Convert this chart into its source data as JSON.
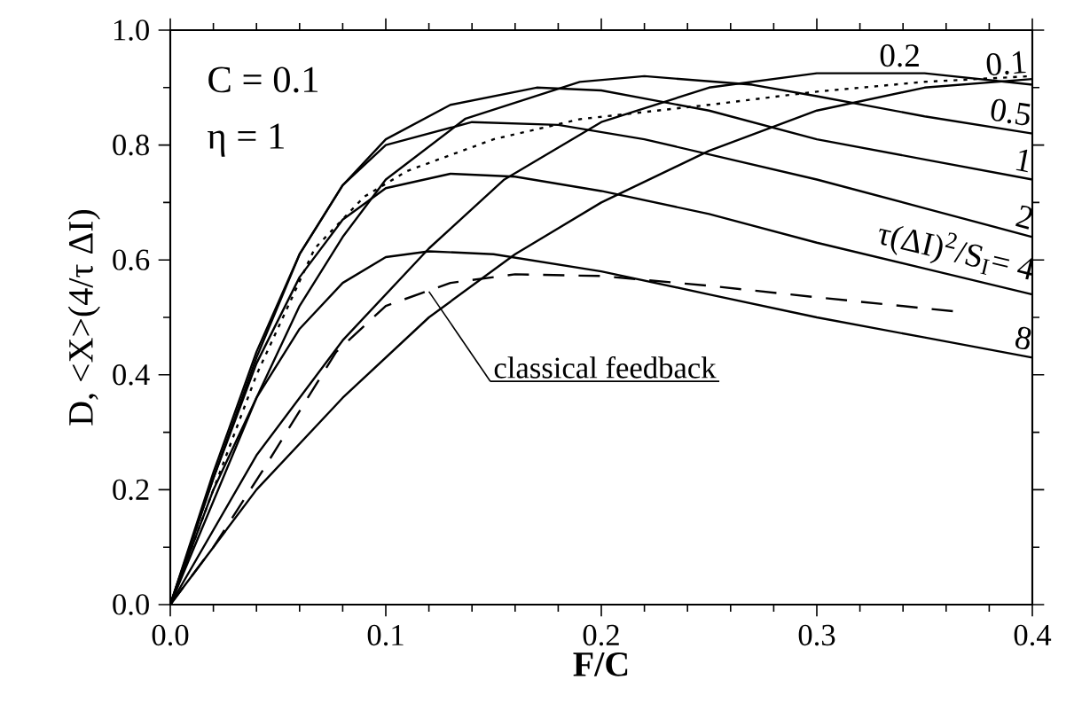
{
  "chart_data": {
    "type": "line",
    "xlabel": "F/C",
    "ylabel": "D, <X>(4/τ ΔI)",
    "marker": "none",
    "legend": "right",
    "xlim": [
      0,
      0.4
    ],
    "ylim": [
      0,
      1.0
    ],
    "xticks": [
      {
        "value": 0,
        "label": "0.0"
      },
      0.1,
      0.2,
      0.3,
      0.4
    ],
    "yticks": [
      {
        "value": 0,
        "label": "0.0"
      },
      0.2,
      0.4,
      0.6,
      0.8,
      {
        "value": 1.0,
        "label": "1.0"
      }
    ],
    "annotations": [
      "C = 0.1",
      "η = 1",
      {
        "text": "classical feedback",
        "x": 0.12,
        "y": 0.545
      }
    ],
    "series": [
      {
        "name": "0.1",
        "color": "#000000",
        "line_style": "solid",
        "x": [
          0,
          0.04,
          0.08,
          0.12,
          0.16,
          0.2,
          0.25,
          0.3,
          0.35,
          0.4
        ],
        "values": [
          0,
          0.2,
          0.36,
          0.5,
          0.61,
          0.7,
          0.79,
          0.86,
          0.9,
          0.915
        ]
      },
      {
        "name": "0.2",
        "color": "#000000",
        "line_style": "solid",
        "x": [
          0,
          0.04,
          0.08,
          0.1,
          0.12,
          0.155,
          0.2,
          0.25,
          0.3,
          0.35,
          0.4
        ],
        "values": [
          0,
          0.26,
          0.46,
          0.54,
          0.62,
          0.74,
          0.84,
          0.9,
          0.925,
          0.925,
          0.905
        ]
      },
      {
        "name": "0.5",
        "color": "#000000",
        "line_style": "solid",
        "x": [
          0,
          0.02,
          0.04,
          0.06,
          0.08,
          0.1,
          0.137,
          0.19,
          0.22,
          0.27,
          0.3,
          0.35,
          0.4
        ],
        "values": [
          0,
          0.18,
          0.36,
          0.52,
          0.64,
          0.74,
          0.846,
          0.91,
          0.92,
          0.905,
          0.885,
          0.85,
          0.82
        ]
      },
      {
        "name": "1",
        "color": "#000000",
        "line_style": "solid",
        "x": [
          0,
          0.02,
          0.04,
          0.06,
          0.08,
          0.1,
          0.13,
          0.17,
          0.2,
          0.25,
          0.3,
          0.35,
          0.4
        ],
        "values": [
          0,
          0.22,
          0.43,
          0.61,
          0.73,
          0.81,
          0.87,
          0.9,
          0.895,
          0.86,
          0.81,
          0.775,
          0.74
        ]
      },
      {
        "name": "2",
        "color": "#000000",
        "line_style": "solid",
        "x": [
          0,
          0.02,
          0.04,
          0.06,
          0.08,
          0.1,
          0.14,
          0.18,
          0.22,
          0.3,
          0.35,
          0.4
        ],
        "values": [
          0,
          0.23,
          0.44,
          0.61,
          0.73,
          0.8,
          0.84,
          0.835,
          0.81,
          0.74,
          0.69,
          0.64
        ]
      },
      {
        "name": "τ(ΔI)$^{2}$/S$_{I}$= 4",
        "color": "#000000",
        "line_style": "solid",
        "x": [
          0,
          0.02,
          0.04,
          0.06,
          0.08,
          0.1,
          0.13,
          0.16,
          0.2,
          0.25,
          0.3,
          0.35,
          0.4
        ],
        "values": [
          0,
          0.22,
          0.42,
          0.57,
          0.67,
          0.725,
          0.75,
          0.745,
          0.72,
          0.68,
          0.63,
          0.585,
          0.54
        ]
      },
      {
        "name": "8",
        "color": "#000000",
        "line_style": "solid",
        "x": [
          0,
          0.02,
          0.04,
          0.06,
          0.08,
          0.1,
          0.12,
          0.15,
          0.2,
          0.25,
          0.3,
          0.35,
          0.4
        ],
        "values": [
          0,
          0.2,
          0.36,
          0.48,
          0.56,
          0.605,
          0.615,
          0.61,
          0.58,
          0.54,
          0.5,
          0.465,
          0.43
        ]
      },
      {
        "color": "#000000",
        "line_style": "dotted",
        "x": [
          0,
          0.02,
          0.04,
          0.067,
          0.09,
          0.11,
          0.15,
          0.19,
          0.25,
          0.3,
          0.35,
          0.4
        ],
        "values": [
          0,
          0.2,
          0.4,
          0.62,
          0.71,
          0.755,
          0.81,
          0.845,
          0.87,
          0.893,
          0.91,
          0.92
        ]
      },
      {
        "color": "#000000",
        "line_style": "dashed",
        "x": [
          0,
          0.02,
          0.044,
          0.077,
          0.1,
          0.13,
          0.16,
          0.2,
          0.25,
          0.3,
          0.365
        ],
        "values": [
          0,
          0.1,
          0.24,
          0.44,
          0.52,
          0.56,
          0.575,
          0.572,
          0.555,
          0.535,
          0.51
        ]
      }
    ]
  }
}
